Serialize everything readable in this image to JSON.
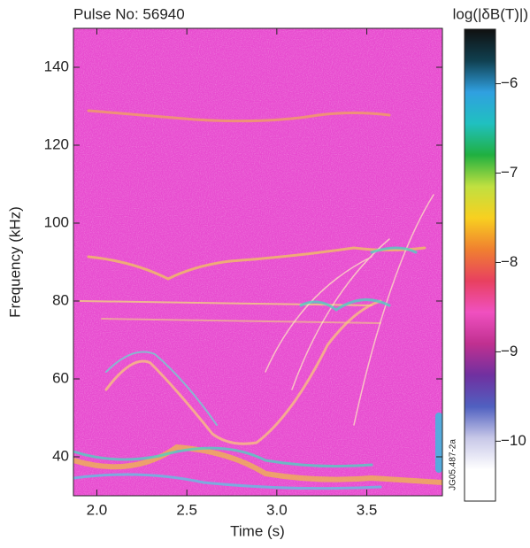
{
  "chart_data": {
    "type": "spectrogram",
    "title": "Pulse No: 56940",
    "x_label": "Time (s)",
    "y_label": "Frequency (kHz)",
    "annotation": "JG05.487-2a",
    "xlim": [
      1.87,
      3.92
    ],
    "xticks": [
      {
        "value": 2,
        "label": "2.0"
      },
      2.5,
      {
        "value": 3,
        "label": "3.0"
      },
      3.5
    ],
    "ylim": [
      30,
      150
    ],
    "yticks": [
      40,
      60,
      80,
      100,
      120,
      140
    ],
    "colorbar": {
      "label": "log(|δB(T)|)",
      "lim": [
        -10.67,
        -5.39
      ],
      "ticks": [
        {
          "value": -6,
          "label": "−6"
        },
        {
          "value": -7,
          "label": "−7"
        },
        {
          "value": -8,
          "label": "−8"
        },
        {
          "value": -9,
          "label": "−9"
        },
        {
          "value": -10,
          "label": "−10"
        }
      ],
      "colors": [
        "#ffffff",
        "#ffffff",
        "#c8c8e8",
        "#5060c0",
        "#7030a0",
        "#c03090",
        "#f050c0",
        "#e84060",
        "#f08030",
        "#f8d020",
        "#c0e040",
        "#20b040",
        "#20c0c0",
        "#30a0e0",
        "#104050",
        "#101010"
      ]
    },
    "background_color": "#e84cd0"
  }
}
